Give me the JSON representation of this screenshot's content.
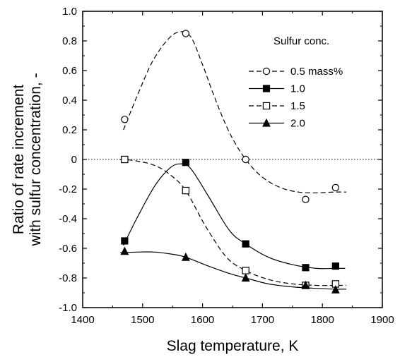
{
  "chart_data": {
    "type": "line",
    "title": "",
    "xlabel": "Slag temperature, K",
    "ylabel_lines": [
      "Ratio of rate increment",
      "with sulfur concentration, -"
    ],
    "xlim": [
      1400,
      1900
    ],
    "ylim": [
      -1.0,
      1.0
    ],
    "xticks": [
      1400,
      1500,
      1600,
      1700,
      1800,
      1900
    ],
    "yticks": [
      -1.0,
      -0.8,
      -0.6,
      -0.4,
      -0.2,
      0,
      0.2,
      0.4,
      0.6,
      0.8,
      1.0
    ],
    "xtick_labels": [
      "1400",
      "1500",
      "1600",
      "1700",
      "1800",
      "1900"
    ],
    "ytick_labels": [
      "-1.0",
      "-0.8",
      "-0.6",
      "-0.4",
      "-0.2",
      "0",
      "0.2",
      "0.4",
      "0.6",
      "0.8",
      "1.0"
    ],
    "reference_line": {
      "y": 0,
      "style": "dotted"
    },
    "legend": {
      "title": "Sulfur conc.",
      "placement": "top-right"
    },
    "series": [
      {
        "name": "0.5 mass%",
        "marker": "open-circle",
        "line_style": "dashed",
        "points": [
          [
            1470,
            0.27
          ],
          [
            1572,
            0.85
          ],
          [
            1672,
            0.0
          ],
          [
            1772,
            -0.27
          ],
          [
            1822,
            -0.19
          ]
        ],
        "curve": [
          [
            1468,
            0.2
          ],
          [
            1490,
            0.42
          ],
          [
            1515,
            0.65
          ],
          [
            1540,
            0.8
          ],
          [
            1560,
            0.86
          ],
          [
            1580,
            0.83
          ],
          [
            1600,
            0.64
          ],
          [
            1620,
            0.42
          ],
          [
            1645,
            0.18
          ],
          [
            1672,
            0.0
          ],
          [
            1700,
            -0.12
          ],
          [
            1730,
            -0.19
          ],
          [
            1760,
            -0.22
          ],
          [
            1790,
            -0.225
          ],
          [
            1820,
            -0.22
          ],
          [
            1840,
            -0.22
          ]
        ]
      },
      {
        "name": "1.0",
        "marker": "filled-square",
        "line_style": "solid",
        "points": [
          [
            1470,
            -0.55
          ],
          [
            1572,
            -0.02
          ],
          [
            1672,
            -0.57
          ],
          [
            1772,
            -0.73
          ],
          [
            1822,
            -0.72
          ]
        ],
        "curve": [
          [
            1468,
            -0.58
          ],
          [
            1490,
            -0.4
          ],
          [
            1520,
            -0.18
          ],
          [
            1545,
            -0.06
          ],
          [
            1562,
            -0.03
          ],
          [
            1580,
            -0.06
          ],
          [
            1610,
            -0.25
          ],
          [
            1645,
            -0.48
          ],
          [
            1672,
            -0.57
          ],
          [
            1710,
            -0.66
          ],
          [
            1750,
            -0.71
          ],
          [
            1790,
            -0.735
          ],
          [
            1820,
            -0.735
          ],
          [
            1838,
            -0.735
          ]
        ]
      },
      {
        "name": "1.5",
        "marker": "open-square",
        "line_style": "dashed",
        "points": [
          [
            1470,
            0.0
          ],
          [
            1572,
            -0.21
          ],
          [
            1672,
            -0.75
          ],
          [
            1772,
            -0.85
          ],
          [
            1822,
            -0.84
          ]
        ],
        "curve": [
          [
            1462,
            0.0
          ],
          [
            1490,
            -0.01
          ],
          [
            1520,
            -0.04
          ],
          [
            1545,
            -0.1
          ],
          [
            1572,
            -0.21
          ],
          [
            1605,
            -0.45
          ],
          [
            1640,
            -0.66
          ],
          [
            1672,
            -0.75
          ],
          [
            1710,
            -0.81
          ],
          [
            1750,
            -0.84
          ],
          [
            1790,
            -0.85
          ],
          [
            1820,
            -0.85
          ],
          [
            1840,
            -0.85
          ]
        ]
      },
      {
        "name": "2.0",
        "marker": "filled-triangle",
        "line_style": "solid",
        "points": [
          [
            1470,
            -0.62
          ],
          [
            1572,
            -0.66
          ],
          [
            1672,
            -0.8
          ],
          [
            1772,
            -0.85
          ],
          [
            1822,
            -0.88
          ]
        ],
        "curve": [
          [
            1463,
            -0.63
          ],
          [
            1490,
            -0.625
          ],
          [
            1520,
            -0.625
          ],
          [
            1550,
            -0.64
          ],
          [
            1572,
            -0.66
          ],
          [
            1610,
            -0.72
          ],
          [
            1645,
            -0.77
          ],
          [
            1672,
            -0.8
          ],
          [
            1710,
            -0.84
          ],
          [
            1750,
            -0.86
          ],
          [
            1790,
            -0.87
          ],
          [
            1820,
            -0.875
          ],
          [
            1840,
            -0.875
          ]
        ]
      }
    ]
  }
}
